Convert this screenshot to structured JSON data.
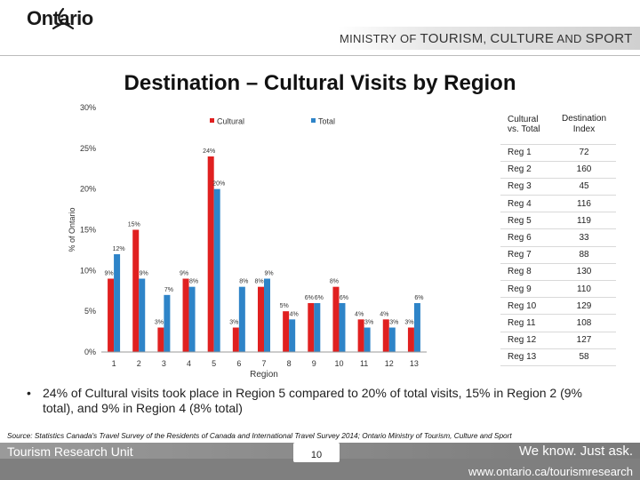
{
  "header": {
    "logo_text": "Ontario",
    "ministry_pre": "MINISTRY OF",
    "ministry_a": "TOURISM",
    "ministry_b": "CULTURE",
    "ministry_and": "AND",
    "ministry_c": "SPORT"
  },
  "title": "Destination – Cultural Visits by Region",
  "chart_data": {
    "type": "bar",
    "xlabel": "Region",
    "ylabel": "% of Ontario",
    "ylim": [
      0,
      30
    ],
    "yticks": [
      "0%",
      "5%",
      "10%",
      "15%",
      "20%",
      "25%",
      "30%"
    ],
    "categories": [
      "1",
      "2",
      "3",
      "4",
      "5",
      "6",
      "7",
      "8",
      "9",
      "10",
      "11",
      "12",
      "13"
    ],
    "series": [
      {
        "name": "Cultural",
        "color": "#e02020",
        "values": [
          9,
          15,
          3,
          9,
          24,
          3,
          8,
          5,
          6,
          8,
          4,
          4,
          3
        ],
        "labels": [
          "9%",
          "15%",
          "3%",
          "9%",
          "24%",
          "3%",
          "8%",
          "5%",
          "6%",
          "8%",
          "4%",
          "4%",
          "3%"
        ]
      },
      {
        "name": "Total",
        "color": "#2e84c8",
        "values": [
          12,
          9,
          7,
          8,
          20,
          8,
          9,
          4,
          6,
          6,
          3,
          3,
          6
        ],
        "labels": [
          "12%",
          "9%",
          "7%",
          "8%",
          "20%",
          "8%",
          "9%",
          "4%",
          "6%",
          "6%",
          "3%",
          "3%",
          "6%"
        ]
      }
    ],
    "legend": "top"
  },
  "table": {
    "head_col1": "Cultural vs. Total",
    "head_col2": "Destination Index",
    "rows": [
      [
        "Reg 1",
        "72"
      ],
      [
        "Reg 2",
        "160"
      ],
      [
        "Reg 3",
        "45"
      ],
      [
        "Reg 4",
        "116"
      ],
      [
        "Reg 5",
        "119"
      ],
      [
        "Reg 6",
        "33"
      ],
      [
        "Reg 7",
        "88"
      ],
      [
        "Reg 8",
        "130"
      ],
      [
        "Reg 9",
        "110"
      ],
      [
        "Reg 10",
        "129"
      ],
      [
        "Reg 11",
        "108"
      ],
      [
        "Reg 12",
        "127"
      ],
      [
        "Reg 13",
        "58"
      ]
    ]
  },
  "bullet": {
    "marker": "•",
    "text": "24% of Cultural visits took place in Region 5 compared to 20% of total visits, 15% in Region 2 (9% total), and 9% in Region 4 (8% total)"
  },
  "source": "Source: Statistics Canada's Travel Survey of the Residents of Canada and International Travel Survey 2014; Ontario Ministry of Tourism, Culture and Sport",
  "footer": {
    "unit": "Tourism Research Unit",
    "tagline": "We know. Just ask.",
    "page": "10",
    "url": "www.ontario.ca/tourismresearch"
  }
}
